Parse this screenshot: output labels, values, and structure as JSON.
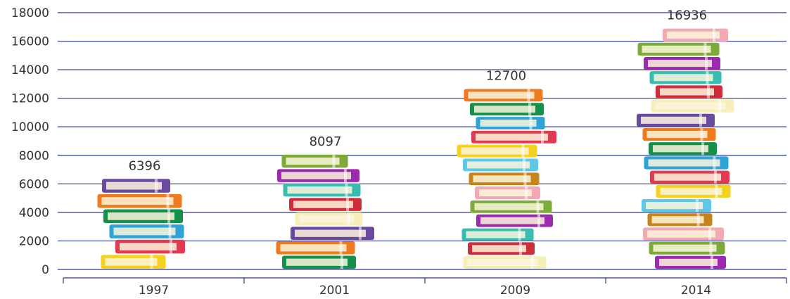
{
  "chart_data": {
    "type": "bar",
    "categories": [
      "1997",
      "2001",
      "2009",
      "2014"
    ],
    "values": [
      6396,
      8097,
      12700,
      16936
    ],
    "title": "",
    "xlabel": "",
    "ylabel": "",
    "ylim": [
      0,
      18000
    ],
    "yticks": [
      0,
      2000,
      4000,
      6000,
      8000,
      10000,
      12000,
      14000,
      16000,
      18000
    ],
    "ytick_labels": [
      "0",
      "2000",
      "4000",
      "6000",
      "8000",
      "10000",
      "12000",
      "14000",
      "16000",
      "18000"
    ],
    "data_labels": [
      "6396",
      "8097",
      "12700",
      "16936"
    ],
    "grid": true,
    "bar_style": "stacked books pictogram",
    "colors": {
      "grid": "#2e3a8c",
      "axis": "#2e3a8c",
      "books": [
        "#f4d21f",
        "#e23a52",
        "#2fa2d8",
        "#14904a",
        "#f07a1e",
        "#6a4aa0",
        "#f6efb8",
        "#d02d3a",
        "#38bdb0",
        "#9b2ab0",
        "#7dab3a",
        "#f2a9b3",
        "#c8841c",
        "#5dc8e8"
      ]
    }
  }
}
